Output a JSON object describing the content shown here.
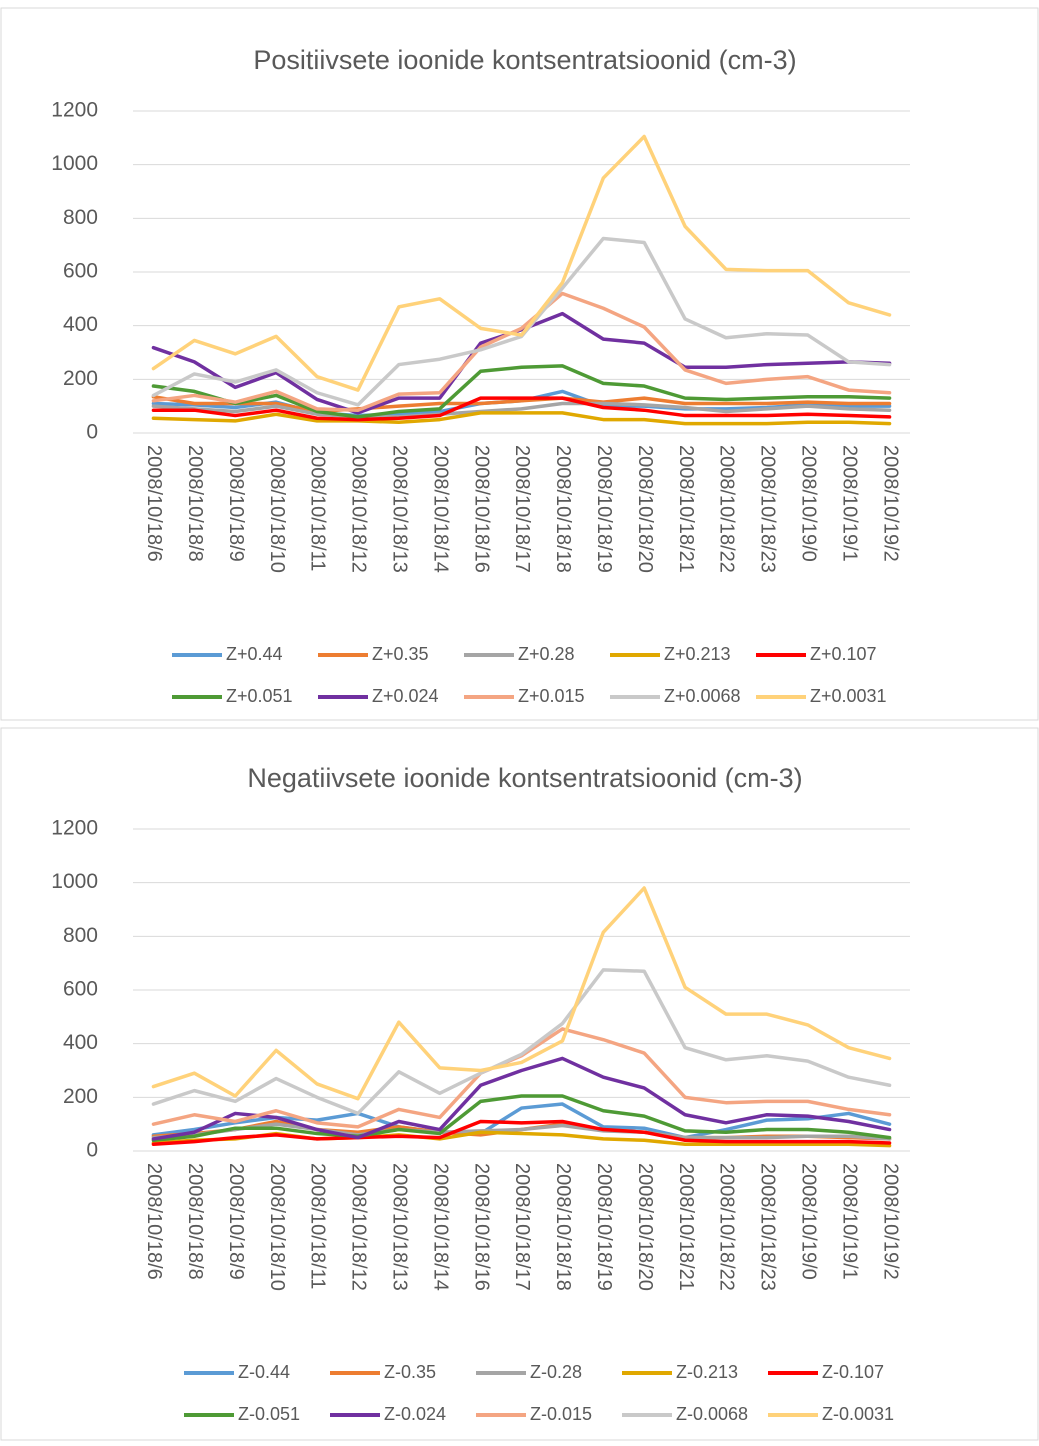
{
  "chart_data": [
    {
      "type": "line",
      "title": "Positiivsete ioonide kontsentratsioonid (cm-3)",
      "categories": [
        "2008/10/18/6",
        "2008/10/18/8",
        "2008/10/18/9",
        "2008/10/18/10",
        "2008/10/18/11",
        "2008/10/18/12",
        "2008/10/18/13",
        "2008/10/18/14",
        "2008/10/18/16",
        "2008/10/18/17",
        "2008/10/18/18",
        "2008/10/18/19",
        "2008/10/18/20",
        "2008/10/18/21",
        "2008/10/18/22",
        "2008/10/18/23",
        "2008/10/19/0",
        "2008/10/19/1",
        "2008/10/19/2"
      ],
      "ylim": [
        0,
        1200
      ],
      "yticks": [
        0,
        200,
        400,
        600,
        800,
        1000,
        1200
      ],
      "grid": true,
      "legend": "bottom",
      "series": [
        {
          "name": "Z+0.44",
          "color": "#5b9bd5",
          "values": [
            110,
            105,
            95,
            115,
            75,
            65,
            70,
            80,
            110,
            120,
            155,
            100,
            100,
            90,
            90,
            95,
            105,
            100,
            100
          ]
        },
        {
          "name": "Z+0.35",
          "color": "#ed7d31",
          "values": [
            135,
            110,
            110,
            110,
            80,
            90,
            100,
            110,
            110,
            120,
            130,
            115,
            130,
            110,
            110,
            110,
            115,
            110,
            110
          ]
        },
        {
          "name": "Z+0.28",
          "color": "#a5a5a5",
          "values": [
            100,
            90,
            80,
            100,
            70,
            60,
            60,
            70,
            80,
            90,
            110,
            110,
            105,
            95,
            80,
            90,
            100,
            90,
            85
          ]
        },
        {
          "name": "Z+0.213",
          "color": "#e0a800",
          "values": [
            55,
            50,
            45,
            70,
            45,
            45,
            40,
            50,
            75,
            75,
            75,
            50,
            50,
            35,
            35,
            35,
            40,
            40,
            35
          ]
        },
        {
          "name": "Z+0.107",
          "color": "#ff0000",
          "values": [
            85,
            85,
            65,
            85,
            55,
            50,
            55,
            65,
            130,
            130,
            130,
            95,
            85,
            65,
            65,
            65,
            70,
            65,
            60
          ]
        },
        {
          "name": "Z+0.051",
          "color": "#4e9a35",
          "values": [
            175,
            155,
            110,
            140,
            80,
            60,
            80,
            90,
            230,
            245,
            250,
            185,
            175,
            130,
            125,
            130,
            135,
            135,
            130
          ]
        },
        {
          "name": "Z+0.024",
          "color": "#7030a0",
          "values": [
            318,
            265,
            170,
            225,
            125,
            75,
            130,
            130,
            335,
            385,
            445,
            350,
            335,
            245,
            245,
            255,
            260,
            265,
            260
          ]
        },
        {
          "name": "Z+0.015",
          "color": "#f4a582",
          "values": [
            120,
            140,
            115,
            155,
            90,
            85,
            145,
            150,
            320,
            390,
            520,
            465,
            395,
            235,
            185,
            200,
            210,
            160,
            150
          ]
        },
        {
          "name": "Z+0.0068",
          "color": "#c9c9c9",
          "values": [
            140,
            220,
            190,
            235,
            150,
            105,
            255,
            275,
            310,
            360,
            540,
            725,
            710,
            425,
            355,
            370,
            365,
            265,
            255
          ]
        },
        {
          "name": "Z+0.0031",
          "color": "#ffd27a",
          "values": [
            240,
            345,
            295,
            360,
            210,
            160,
            470,
            500,
            390,
            365,
            560,
            950,
            1105,
            770,
            610,
            605,
            605,
            485,
            440
          ]
        }
      ]
    },
    {
      "type": "line",
      "title": "Negatiivsete ioonide kontsentratsioonid (cm-3)",
      "categories": [
        "2008/10/18/6",
        "2008/10/18/8",
        "2008/10/18/9",
        "2008/10/18/10",
        "2008/10/18/11",
        "2008/10/18/12",
        "2008/10/18/13",
        "2008/10/18/14",
        "2008/10/18/16",
        "2008/10/18/17",
        "2008/10/18/18",
        "2008/10/18/19",
        "2008/10/18/20",
        "2008/10/18/21",
        "2008/10/18/22",
        "2008/10/18/23",
        "2008/10/19/0",
        "2008/10/19/1",
        "2008/10/19/2"
      ],
      "ylim": [
        0,
        1200
      ],
      "yticks": [
        0,
        200,
        400,
        600,
        800,
        1000,
        1200
      ],
      "grid": true,
      "legend": "bottom",
      "series": [
        {
          "name": "Z-0.44",
          "color": "#5b9bd5",
          "values": [
            60,
            80,
            105,
            125,
            115,
            140,
            90,
            70,
            65,
            160,
            175,
            90,
            85,
            50,
            80,
            115,
            120,
            140,
            100
          ]
        },
        {
          "name": "Z-0.35",
          "color": "#ed7d31",
          "values": [
            55,
            65,
            80,
            110,
            80,
            70,
            90,
            70,
            60,
            80,
            100,
            80,
            70,
            50,
            50,
            55,
            55,
            50,
            45
          ]
        },
        {
          "name": "Z-0.28",
          "color": "#a5a5a5",
          "values": [
            50,
            60,
            80,
            100,
            80,
            60,
            80,
            70,
            75,
            80,
            95,
            75,
            70,
            50,
            50,
            50,
            55,
            55,
            45
          ]
        },
        {
          "name": "Z-0.213",
          "color": "#e0a800",
          "values": [
            30,
            40,
            45,
            65,
            45,
            50,
            60,
            45,
            70,
            65,
            60,
            45,
            40,
            25,
            25,
            25,
            25,
            25,
            20
          ]
        },
        {
          "name": "Z-0.107",
          "color": "#ff0000",
          "values": [
            25,
            35,
            50,
            60,
            45,
            50,
            55,
            50,
            110,
            105,
            110,
            80,
            70,
            40,
            35,
            35,
            35,
            35,
            30
          ]
        },
        {
          "name": "Z-0.051",
          "color": "#4e9a35",
          "values": [
            40,
            55,
            85,
            85,
            65,
            55,
            80,
            65,
            185,
            205,
            205,
            150,
            130,
            75,
            70,
            80,
            80,
            70,
            50
          ]
        },
        {
          "name": "Z-0.024",
          "color": "#7030a0",
          "values": [
            45,
            70,
            140,
            125,
            80,
            50,
            110,
            80,
            245,
            300,
            345,
            275,
            235,
            135,
            105,
            135,
            130,
            110,
            80
          ]
        },
        {
          "name": "Z-0.015",
          "color": "#f4a582",
          "values": [
            100,
            135,
            110,
            150,
            105,
            90,
            155,
            125,
            290,
            355,
            455,
            415,
            365,
            200,
            180,
            185,
            185,
            155,
            135
          ]
        },
        {
          "name": "Z-0.0068",
          "color": "#c9c9c9",
          "values": [
            175,
            225,
            185,
            270,
            200,
            140,
            295,
            215,
            290,
            360,
            475,
            675,
            670,
            385,
            340,
            355,
            335,
            275,
            245
          ]
        },
        {
          "name": "Z-0.0031",
          "color": "#ffd27a",
          "values": [
            240,
            290,
            205,
            375,
            250,
            195,
            480,
            310,
            300,
            330,
            410,
            815,
            980,
            610,
            510,
            510,
            470,
            385,
            345
          ]
        }
      ]
    }
  ]
}
